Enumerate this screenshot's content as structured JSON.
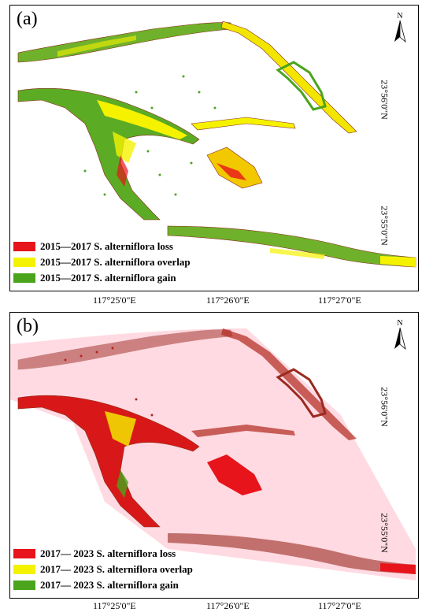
{
  "panels": [
    {
      "id": "a",
      "label": "(a)",
      "legend": [
        {
          "text": "2015—2017 S. alterniflora loss",
          "color": "#e8141b"
        },
        {
          "text": "2015—2017 S. alterniflora overlap",
          "color": "#f5f200"
        },
        {
          "text": "2015—2017 S. alterniflora gain",
          "color": "#4aa41c"
        }
      ],
      "lat_labels": [
        "23°56'0\"N",
        "23°55'0\"N"
      ],
      "north_label": "N"
    },
    {
      "id": "b",
      "label": "(b)",
      "legend": [
        {
          "text": "2017— 2023 S. alterniflora loss",
          "color": "#e8141b"
        },
        {
          "text": "2017— 2023 S. alterniflora overlap",
          "color": "#f5f200"
        },
        {
          "text": "2017— 2023 S. alterniflora gain",
          "color": "#4aa41c"
        }
      ],
      "lat_labels": [
        "23°56'0\"N",
        "23°55'0\"N"
      ],
      "north_label": "N"
    }
  ],
  "lon_labels": [
    "117°25'0\"E",
    "117°26'0\"E",
    "117°27'0\"E"
  ]
}
